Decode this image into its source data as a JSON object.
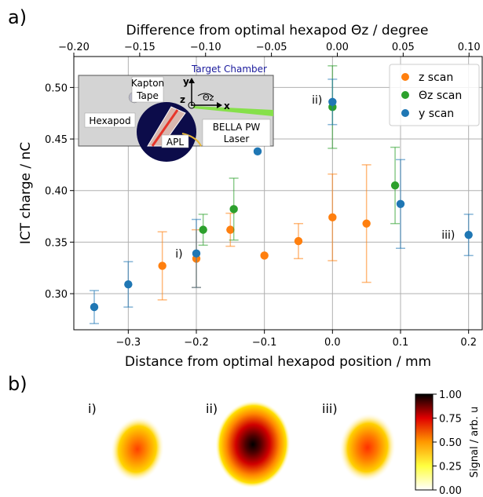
{
  "panel_a_label": "a)",
  "panel_b_label": "b)",
  "chart_data": [
    {
      "type": "scatter",
      "xlabel": "Distance from optimal hexapod position / mm",
      "ylabel": "ICT charge / nC",
      "top_xlabel": "Difference from optimal hexapod Θz / degree",
      "xlim": [
        -0.38,
        0.22
      ],
      "ylim": [
        0.265,
        0.53
      ],
      "top_xlim": [
        -0.2,
        0.11
      ],
      "xticks": [
        -0.3,
        -0.2,
        -0.1,
        0.0,
        0.1,
        0.2
      ],
      "xtick_labels": [
        "−0.3",
        "−0.2",
        "−0.1",
        "0.0",
        "0.1",
        "0.2"
      ],
      "yticks": [
        0.3,
        0.35,
        0.4,
        0.45,
        0.5
      ],
      "ytick_labels": [
        "0.30",
        "0.35",
        "0.40",
        "0.45",
        "0.50"
      ],
      "top_xticks": [
        -0.2,
        -0.15,
        -0.1,
        -0.05,
        0.0,
        0.05,
        0.1
      ],
      "top_xtick_labels": [
        "−0.20",
        "−0.15",
        "−0.10",
        "−0.05",
        "0.00",
        "0.05",
        "0.10"
      ],
      "grid": true,
      "legend_position": "top-right",
      "series": [
        {
          "name": "z scan",
          "color": "#ff7f0e",
          "points": [
            {
              "x": -0.25,
              "y": 0.327,
              "err": 0.033
            },
            {
              "x": -0.2,
              "y": 0.334,
              "err": 0.028
            },
            {
              "x": -0.15,
              "y": 0.362,
              "err": 0.016
            },
            {
              "x": -0.1,
              "y": 0.337,
              "err": 0.0
            },
            {
              "x": -0.05,
              "y": 0.351,
              "err": 0.017
            },
            {
              "x": 0.0,
              "y": 0.374,
              "err": 0.042
            },
            {
              "x": 0.05,
              "y": 0.368,
              "err": 0.057
            }
          ]
        },
        {
          "name": "Θz scan",
          "color": "#2ca02c",
          "points": [
            {
              "x": -0.19,
              "y": 0.362,
              "err": 0.015
            },
            {
              "x": -0.145,
              "y": 0.382,
              "err": 0.03
            },
            {
              "x": 0.0,
              "y": 0.481,
              "err": 0.04
            },
            {
              "x": 0.092,
              "y": 0.405,
              "err": 0.037
            }
          ]
        },
        {
          "name": "y scan",
          "color": "#1f77b4",
          "points": [
            {
              "x": -0.35,
              "y": 0.287,
              "err": 0.016
            },
            {
              "x": -0.3,
              "y": 0.309,
              "err": 0.022
            },
            {
              "x": -0.2,
              "y": 0.339,
              "err": 0.033
            },
            {
              "x": -0.11,
              "y": 0.438,
              "err": 0.0
            },
            {
              "x": 0.0,
              "y": 0.486,
              "err": 0.022
            },
            {
              "x": 0.1,
              "y": 0.387,
              "err": 0.043
            },
            {
              "x": 0.2,
              "y": 0.357,
              "err": 0.02
            }
          ]
        }
      ],
      "annotations": [
        {
          "text": "i)",
          "x": -0.22,
          "y": 0.339
        },
        {
          "text": "ii)",
          "x": -0.015,
          "y": 0.488
        },
        {
          "text": "iii)",
          "x": 0.18,
          "y": 0.357
        }
      ]
    },
    {
      "type": "heatmap",
      "colorbar_label": "Signal / arb. u",
      "colorbar_range": [
        0.0,
        1.0
      ],
      "colorbar_ticks": [
        0.0,
        0.25,
        0.5,
        0.75,
        1.0
      ],
      "colorbar_tick_labels": [
        "0.00",
        "0.25",
        "0.50",
        "0.75",
        "1.00"
      ],
      "images": [
        {
          "label": "i)",
          "peak": 0.55
        },
        {
          "label": "ii)",
          "peak": 1.0
        },
        {
          "label": "iii)",
          "peak": 0.6
        }
      ]
    }
  ],
  "inset": {
    "title": "Target Chamber",
    "kapton_label_1": "Kapton",
    "kapton_label_2": "Tape",
    "hexapod_label": "Hexapod",
    "apl_label": "APL",
    "laser_label_1": "BELLA PW",
    "laser_label_2": "Laser",
    "axis_y": "y",
    "axis_x": "x",
    "axis_z": "z",
    "axis_theta": "Θz"
  }
}
